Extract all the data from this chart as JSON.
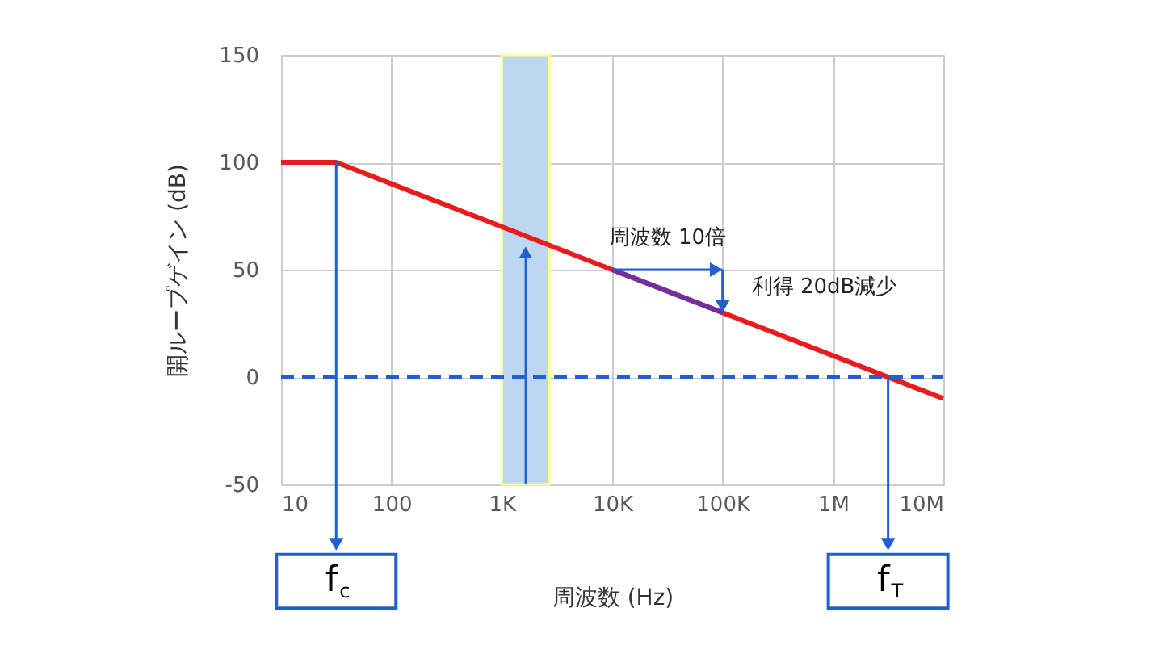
{
  "chart_data": {
    "type": "line",
    "xlabel": "周波数 (Hz)",
    "ylabel": "開ループゲイン (dB)",
    "log": "x",
    "grid": true,
    "xlim": [
      10,
      10000000
    ],
    "xticks": [
      10,
      100,
      {
        "value": 1000,
        "label": "1K"
      },
      {
        "value": 10000,
        "label": "10K"
      },
      {
        "value": 100000,
        "label": "100K"
      },
      {
        "value": 1000000,
        "label": "1M"
      },
      {
        "value": 10000000,
        "label": "10M"
      }
    ],
    "ylim": [
      -50,
      150
    ],
    "yticks": [
      -50,
      0,
      50,
      100,
      150
    ],
    "series": [
      {
        "color": "#e81c1c",
        "x": [
          10,
          31.6,
          10000000
        ],
        "values": [
          100,
          100,
          -10
        ]
      },
      {
        "color": "#7030a0",
        "x": [
          10000,
          100000
        ],
        "values": [
          50,
          30
        ]
      }
    ],
    "ref_lines": [
      {
        "axis": "y",
        "value": 0,
        "color": "#1f5fd0",
        "line_style": "dashed"
      }
    ],
    "bands": [
      {
        "axis": "x",
        "from": 1000,
        "to": 2700,
        "color": "#bdd7ee"
      }
    ],
    "annotations": [
      {
        "text": "f$_{c}$",
        "x": 31.6,
        "y": 100
      },
      {
        "text": "f$_{T}$",
        "x": 3160000,
        "y": 0
      },
      "周波数 10倍",
      {
        "text": "利得 20dB減少",
        "x": 100000,
        "y": 30
      }
    ]
  }
}
